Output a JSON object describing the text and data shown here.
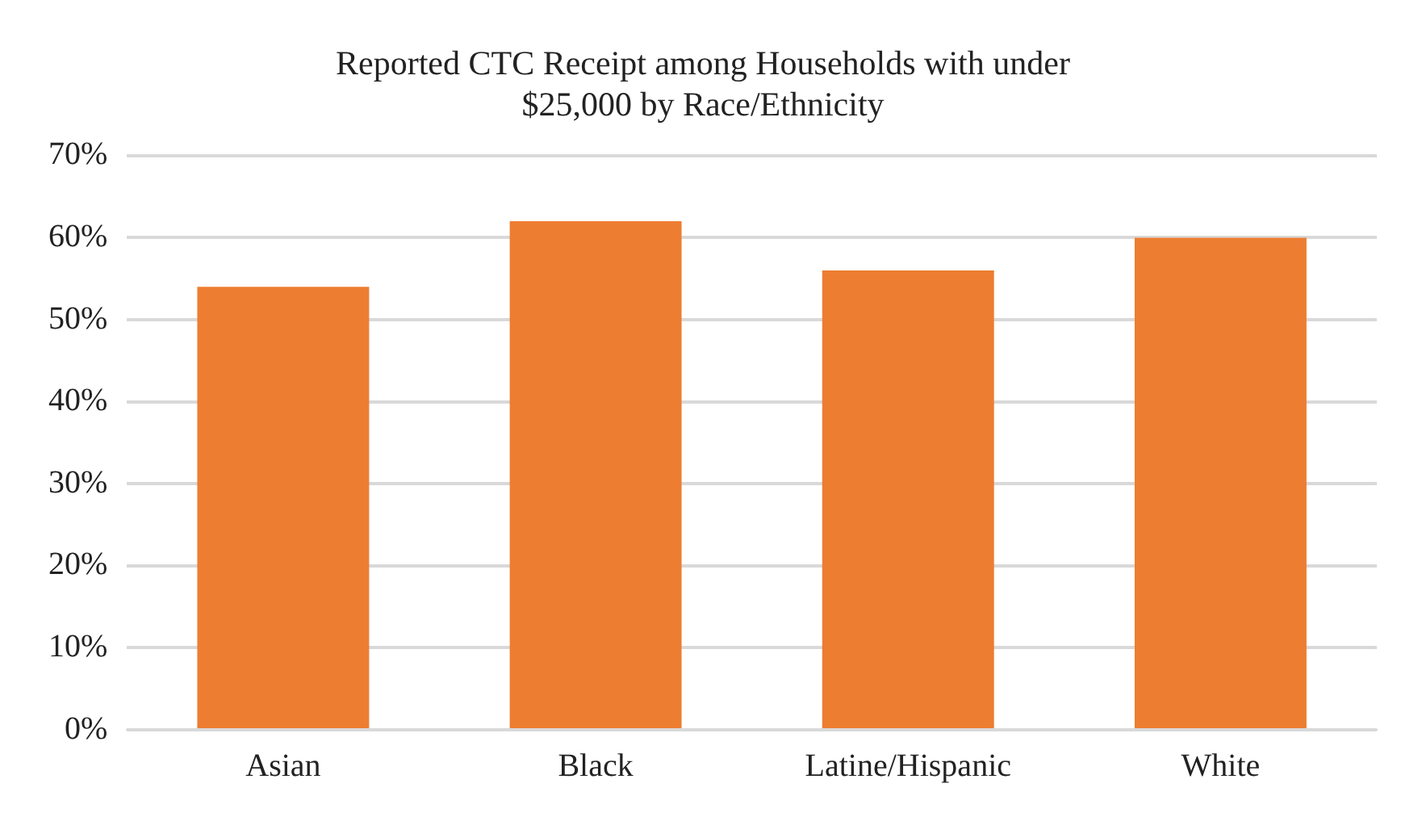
{
  "chart_data": {
    "type": "bar",
    "title": "Reported CTC Receipt among Households with under $25,000 by Race/Ethnicity",
    "categories": [
      "Asian",
      "Black",
      "Latine/Hispanic",
      "White"
    ],
    "values": [
      54,
      62,
      56,
      60
    ],
    "color": "#ed7d31",
    "ylim": [
      0,
      70
    ],
    "yticks": [
      {
        "value": 0,
        "label": "0%"
      },
      {
        "value": 10,
        "label": "10%"
      },
      {
        "value": 20,
        "label": "20%"
      },
      {
        "value": 30,
        "label": "30%"
      },
      {
        "value": 40,
        "label": "40%"
      },
      {
        "value": 50,
        "label": "50%"
      },
      {
        "value": 60,
        "label": "60%"
      },
      {
        "value": 70,
        "label": "70%"
      }
    ],
    "grid": "y",
    "legend": false
  }
}
